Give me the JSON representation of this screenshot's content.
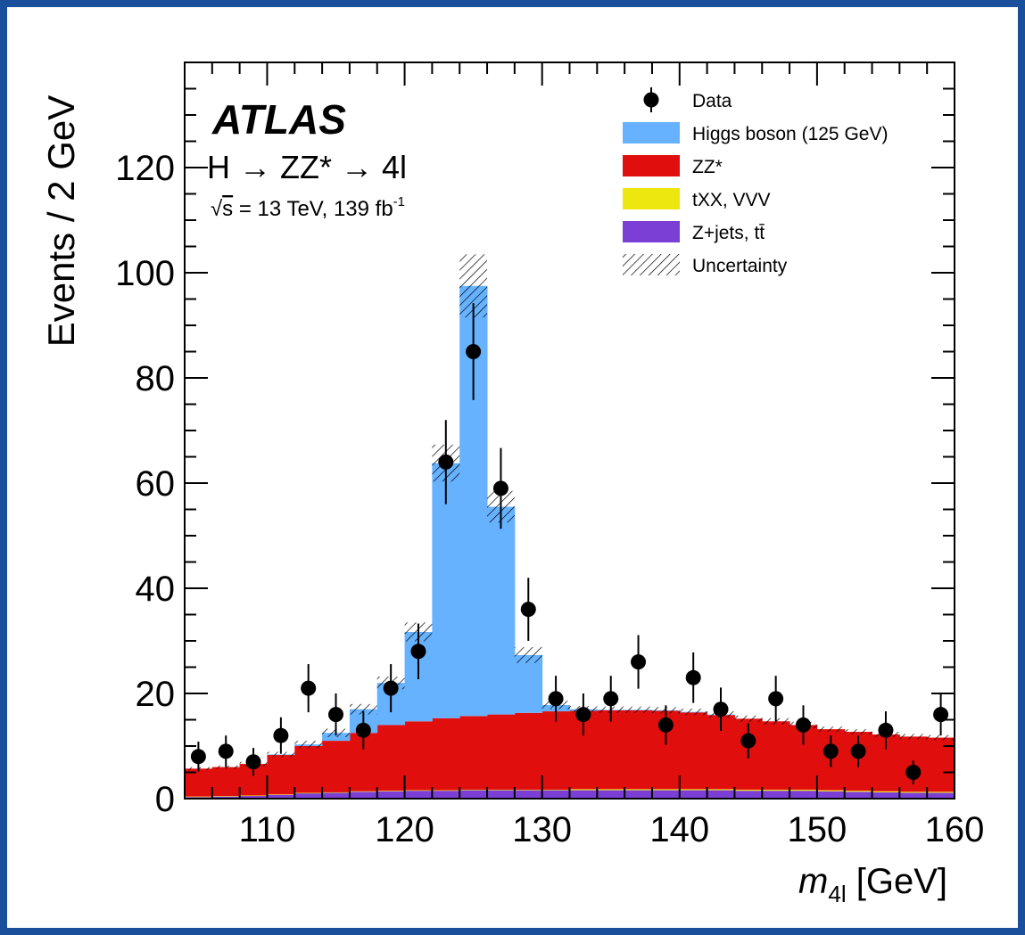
{
  "chart_data": {
    "type": "bar",
    "stacked": true,
    "experiment": "ATLAS",
    "process_line": "H → ZZ* → 4l",
    "energy_line": {
      "sqrt": "√",
      "s": "s",
      "rest": " = 13 TeV, 139 fb",
      "sup": "-1"
    },
    "xlabel": {
      "var": "m",
      "sub": "4l",
      "unit": " [GeV]"
    },
    "ylabel": "Events / 2 GeV",
    "xlim": [
      104,
      160
    ],
    "ylim": [
      0,
      140
    ],
    "x_ticks": [
      110,
      120,
      130,
      140,
      150,
      160
    ],
    "x_tick_labels": [
      "110",
      "120",
      "130",
      "140",
      "150",
      "160"
    ],
    "y_ticks": [
      0,
      20,
      40,
      60,
      80,
      100,
      120
    ],
    "y_tick_labels": [
      "0",
      "20",
      "40",
      "60",
      "80",
      "100",
      "120"
    ],
    "x_minor_step": 2,
    "y_minor_step": 5,
    "bins": [
      104,
      106,
      108,
      110,
      112,
      114,
      116,
      118,
      120,
      122,
      124,
      126,
      128,
      130,
      132,
      134,
      136,
      138,
      140,
      142,
      144,
      146,
      148,
      150,
      152,
      154,
      156,
      158,
      160
    ],
    "stack": [
      {
        "key": "zjets",
        "name": "Z+jets, tt̄",
        "color": "#7b3fd6",
        "values": [
          0.3,
          0.4,
          0.5,
          0.7,
          1.0,
          1.1,
          1.3,
          1.4,
          1.5,
          1.5,
          1.6,
          1.6,
          1.6,
          1.6,
          1.6,
          1.6,
          1.6,
          1.6,
          1.6,
          1.6,
          1.5,
          1.5,
          1.5,
          1.4,
          1.3,
          1.2,
          1.1,
          1.1
        ]
      },
      {
        "key": "txx",
        "name": "tXX, VVV",
        "color": "#eee60f",
        "values": [
          0.1,
          0.1,
          0.1,
          0.1,
          0.1,
          0.1,
          0.1,
          0.1,
          0.1,
          0.1,
          0.1,
          0.1,
          0.1,
          0.1,
          0.2,
          0.2,
          0.2,
          0.2,
          0.2,
          0.2,
          0.2,
          0.2,
          0.2,
          0.2,
          0.2,
          0.2,
          0.2,
          0.2
        ]
      },
      {
        "key": "zz",
        "name": "ZZ*",
        "color": "#e10e0e",
        "values": [
          5.3,
          5.5,
          6.0,
          7.5,
          8.9,
          9.8,
          11.1,
          12.5,
          13.1,
          13.7,
          14.0,
          14.3,
          14.6,
          14.9,
          14.9,
          15.0,
          15.0,
          14.9,
          14.6,
          14.1,
          13.5,
          13.0,
          12.3,
          11.6,
          11.2,
          10.8,
          10.5,
          10.3
        ]
      },
      {
        "key": "higgs",
        "name": "Higgs boson (125 GeV)",
        "color": "#66b2ff",
        "values": [
          0.0,
          0.0,
          0.0,
          0.1,
          0.3,
          1.5,
          4.5,
          8.0,
          17.0,
          48.5,
          81.8,
          39.5,
          11.0,
          1.2,
          0.3,
          0.1,
          0.1,
          0.1,
          0.1,
          0.1,
          0.0,
          0.0,
          0.0,
          0.0,
          0.0,
          0.0,
          0.0,
          0.0
        ]
      }
    ],
    "uncertainty": {
      "name": "Uncertainty",
      "values": [
        0.3,
        0.3,
        0.4,
        0.5,
        0.7,
        0.8,
        1.0,
        1.2,
        1.8,
        3.5,
        6.0,
        3.0,
        1.5,
        0.8,
        0.6,
        0.6,
        0.6,
        0.6,
        0.6,
        0.6,
        0.6,
        0.6,
        0.6,
        0.5,
        0.5,
        0.5,
        0.5,
        0.5
      ]
    },
    "data": {
      "name": "Data",
      "x": [
        105,
        107,
        109,
        111,
        113,
        115,
        117,
        119,
        121,
        123,
        125,
        127,
        129,
        131,
        133,
        135,
        137,
        139,
        141,
        143,
        145,
        147,
        149,
        151,
        153,
        155,
        157,
        159
      ],
      "y": [
        8,
        9,
        7,
        12,
        21,
        16,
        13,
        21,
        28,
        64,
        85,
        59,
        36,
        19,
        16,
        19,
        26,
        14,
        23,
        17,
        11,
        19,
        14,
        9,
        9,
        13,
        5,
        16
      ]
    },
    "legend": {
      "position": "top-right",
      "entries": [
        {
          "label": "Data",
          "kind": "marker"
        },
        {
          "label": "Higgs boson (125 GeV)",
          "kind": "fill",
          "color": "#66b2ff"
        },
        {
          "label": "ZZ*",
          "kind": "fill",
          "color": "#e10e0e"
        },
        {
          "label": "tXX, VVV",
          "kind": "fill",
          "color": "#eee60f"
        },
        {
          "label": "Z+jets, tt̄",
          "kind": "fill",
          "color": "#7b3fd6"
        },
        {
          "label": "Uncertainty",
          "kind": "hatch"
        }
      ]
    },
    "frame_color": "#1a4f9c"
  }
}
